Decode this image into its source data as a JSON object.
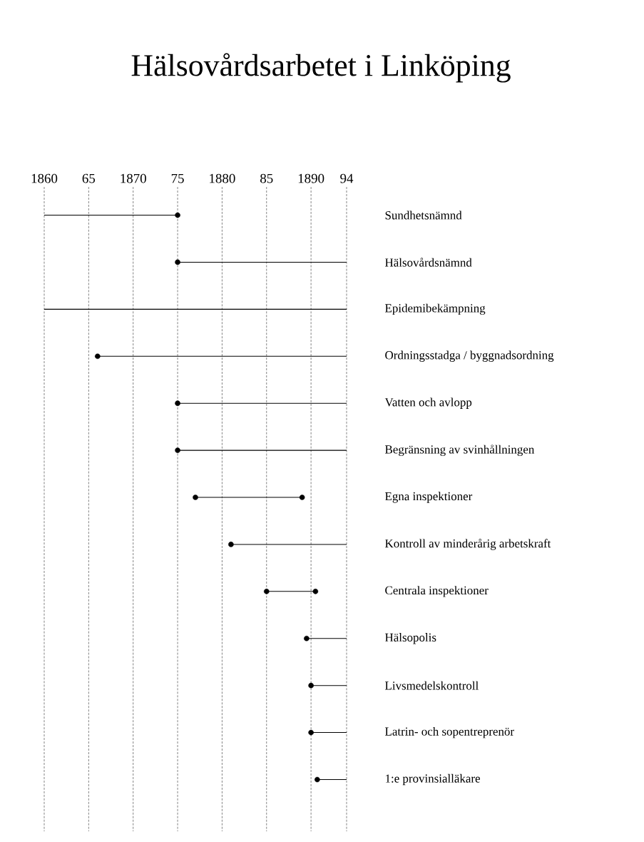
{
  "chart_data": {
    "type": "bar",
    "orientation": "horizontal",
    "title": "Hälsovårdsarbetet i Linköping",
    "categories": [
      "Sundhetsnämnd",
      "Hälsovårdsnämnd",
      "Epidemibekämpning",
      "Ordningsstadga / byggnadsordning",
      "Vatten och avlopp",
      "Begränsning av svinhållningen",
      "Egna inspektioner",
      "Kontroll av minderårig arbetskraft",
      "Centrala inspektioner",
      "Hälsopolis",
      "Livsmedelskontroll",
      "Latrin- och sopentreprenör",
      "1:e provinsialläkare"
    ],
    "series": [
      {
        "color": "#000000",
        "base": [
          1860,
          1875,
          1860,
          1866,
          1875,
          1875,
          1877,
          1881,
          1885,
          1889.5,
          1890,
          1890,
          1890.7
        ],
        "values": [
          15,
          19,
          34,
          28,
          19,
          19,
          12,
          13,
          5.5,
          4.5,
          4,
          4,
          3.3
        ]
      },
      {
        "type": "scatter",
        "marker": "circle",
        "color": "#000000",
        "values": [
          1875,
          1875,
          null,
          1866,
          1875,
          1875,
          1877,
          1881,
          1885,
          1889.5,
          1890,
          1890,
          1890.7
        ]
      },
      {
        "type": "scatter",
        "marker": "circle",
        "color": "#000000",
        "values": [
          null,
          null,
          null,
          null,
          null,
          null,
          1889,
          null,
          1890.5,
          null,
          null,
          null,
          null
        ]
      }
    ],
    "xlim": [
      1860,
      1894
    ],
    "xticks": [
      1860,
      {
        "value": 1865,
        "label": "65"
      },
      1870,
      {
        "value": 1875,
        "label": "75"
      },
      1880,
      {
        "value": 1885,
        "label": "85"
      },
      1890,
      {
        "value": 1894,
        "label": "94"
      }
    ],
    "grid": "x"
  }
}
